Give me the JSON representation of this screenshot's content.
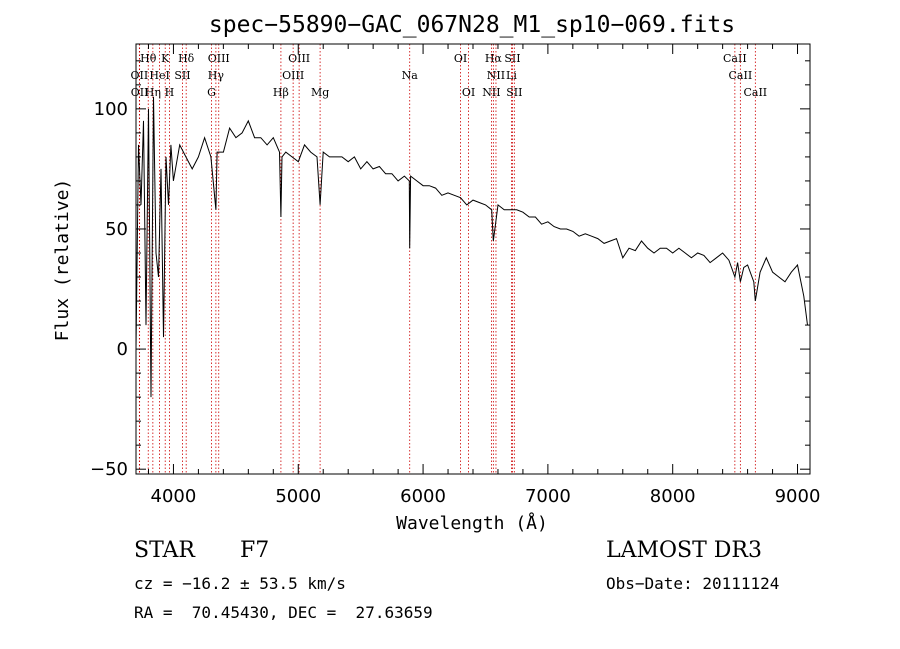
{
  "chart_data": {
    "type": "line",
    "title": "spec−55890−GAC_067N28_M1_sp10−069.fits",
    "xlabel": "Wavelength (Å)",
    "ylabel": "Flux (relative)",
    "xlim": [
      3700,
      9100
    ],
    "ylim": [
      -52,
      127
    ],
    "x_ticks": [
      4000,
      5000,
      6000,
      7000,
      8000,
      9000
    ],
    "x_tick_labels": [
      "4000",
      "5000",
      "6000",
      "7000",
      "8000",
      "9000"
    ],
    "y_ticks": [
      -50,
      0,
      50,
      100
    ],
    "y_tick_labels": [
      "−50",
      "0",
      "50",
      "100"
    ],
    "series": [
      {
        "name": "flux",
        "x": [
          3700,
          3720,
          3740,
          3760,
          3780,
          3800,
          3820,
          3840,
          3860,
          3880,
          3900,
          3920,
          3940,
          3960,
          3980,
          4000,
          4050,
          4100,
          4150,
          4200,
          4250,
          4300,
          4340,
          4350,
          4400,
          4450,
          4500,
          4550,
          4600,
          4650,
          4700,
          4750,
          4800,
          4850,
          4861,
          4870,
          4900,
          4950,
          5000,
          5050,
          5100,
          5150,
          5175,
          5200,
          5250,
          5300,
          5350,
          5400,
          5450,
          5500,
          5550,
          5600,
          5650,
          5700,
          5750,
          5800,
          5850,
          5890,
          5893,
          5900,
          5950,
          6000,
          6050,
          6100,
          6150,
          6200,
          6250,
          6300,
          6350,
          6400,
          6450,
          6500,
          6550,
          6563,
          6580,
          6600,
          6650,
          6700,
          6750,
          6800,
          6850,
          6900,
          6950,
          7000,
          7050,
          7100,
          7150,
          7200,
          7250,
          7300,
          7350,
          7400,
          7450,
          7500,
          7550,
          7600,
          7650,
          7700,
          7750,
          7800,
          7850,
          7900,
          7950,
          8000,
          8050,
          8100,
          8150,
          8200,
          8250,
          8300,
          8350,
          8400,
          8450,
          8498,
          8520,
          8542,
          8570,
          8600,
          8650,
          8662,
          8700,
          8750,
          8800,
          8850,
          8900,
          8950,
          9000,
          9050,
          9080
        ],
        "y": [
          0,
          85,
          60,
          95,
          10,
          100,
          -20,
          105,
          40,
          30,
          75,
          5,
          80,
          60,
          85,
          70,
          85,
          80,
          75,
          80,
          88,
          80,
          58,
          82,
          82,
          92,
          88,
          90,
          95,
          88,
          88,
          85,
          88,
          82,
          55,
          80,
          82,
          80,
          78,
          85,
          82,
          80,
          60,
          82,
          80,
          80,
          80,
          78,
          80,
          75,
          78,
          75,
          76,
          73,
          73,
          70,
          72,
          70,
          42,
          72,
          70,
          68,
          68,
          67,
          64,
          65,
          64,
          63,
          60,
          62,
          61,
          60,
          58,
          45,
          52,
          60,
          58,
          58,
          58,
          57,
          55,
          55,
          52,
          53,
          51,
          50,
          50,
          49,
          47,
          48,
          47,
          46,
          44,
          45,
          46,
          38,
          42,
          41,
          45,
          42,
          40,
          42,
          42,
          40,
          42,
          40,
          38,
          40,
          39,
          36,
          38,
          40,
          37,
          30,
          36,
          28,
          34,
          35,
          28,
          20,
          32,
          38,
          32,
          30,
          28,
          32,
          35,
          22,
          10
        ]
      }
    ],
    "line_annotations": [
      {
        "label": "Hθ",
        "x": 3798,
        "row": 1
      },
      {
        "label": "K",
        "x": 3934,
        "row": 1
      },
      {
        "label": "Hδ",
        "x": 4102,
        "row": 1
      },
      {
        "label": "OIII",
        "x": 4363,
        "row": 1
      },
      {
        "label": "OIII",
        "x": 5007,
        "row": 1
      },
      {
        "label": "OI",
        "x": 6300,
        "row": 1
      },
      {
        "label": "Hα",
        "x": 6563,
        "row": 1
      },
      {
        "label": "SII",
        "x": 6716,
        "row": 1
      },
      {
        "label": "CaII",
        "x": 8498,
        "row": 1
      },
      {
        "label": "OII",
        "x": 3727,
        "row": 2
      },
      {
        "label": "HeI",
        "x": 3889,
        "row": 2
      },
      {
        "label": "SII",
        "x": 4072,
        "row": 2
      },
      {
        "label": "Hγ",
        "x": 4340,
        "row": 2
      },
      {
        "label": "OIII",
        "x": 4959,
        "row": 2
      },
      {
        "label": "Na",
        "x": 5893,
        "row": 2
      },
      {
        "label": "NII",
        "x": 6584,
        "row": 2
      },
      {
        "label": "Li",
        "x": 6708,
        "row": 2
      },
      {
        "label": "CaII",
        "x": 8542,
        "row": 2
      },
      {
        "label": "OII",
        "x": 3729,
        "row": 3
      },
      {
        "label": "Hη",
        "x": 3835,
        "row": 3
      },
      {
        "label": "H",
        "x": 3968,
        "row": 3
      },
      {
        "label": "G",
        "x": 4305,
        "row": 3
      },
      {
        "label": "Hβ",
        "x": 4861,
        "row": 3
      },
      {
        "label": "Mg",
        "x": 5175,
        "row": 3
      },
      {
        "label": "OI",
        "x": 6364,
        "row": 3
      },
      {
        "label": "NII",
        "x": 6548,
        "row": 3
      },
      {
        "label": "SII",
        "x": 6731,
        "row": 3
      },
      {
        "label": "CaII",
        "x": 8662,
        "row": 3
      }
    ],
    "annotation_color": "#cc0000"
  },
  "info": {
    "object_class": "STAR",
    "subclass": "F7",
    "survey": "LAMOST DR3",
    "redshift": "cz = −16.2 ± 53.5 km/s",
    "obs_date": "Obs−Date: 20111124",
    "coords": "RA =  70.45430, DEC =  27.63659"
  }
}
